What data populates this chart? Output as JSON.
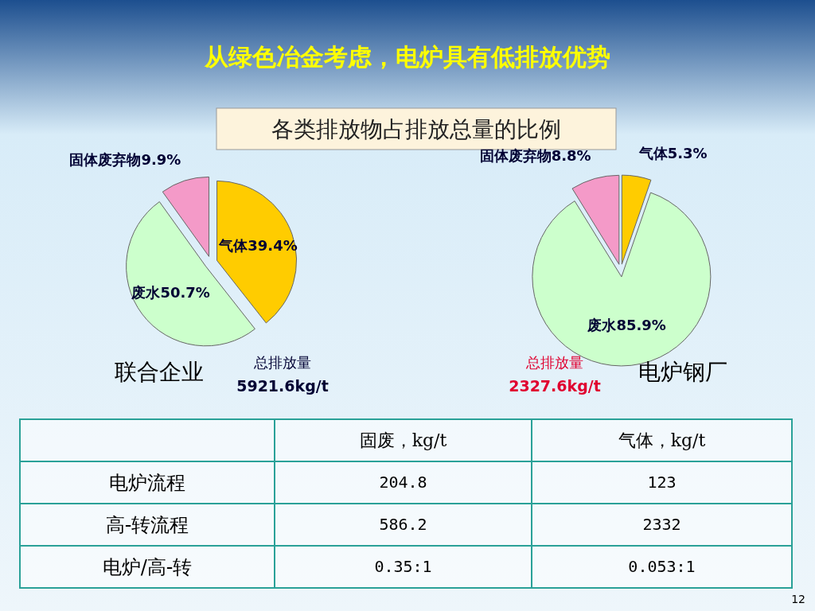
{
  "chart_data": [
    {
      "type": "pie",
      "title": "从绿色冶金考虑，电炉具有低排放优势",
      "subtitle": "各类排放物占排放总量的比例",
      "categories": [
        "气体",
        "废水",
        "固体废弃物"
      ],
      "values": [
        39.4,
        50.7,
        9.9
      ],
      "colors": [
        "#ffcc00",
        "#ccffcc",
        "#f49ac8"
      ],
      "value_labels": [
        "39.4%",
        "50.7%",
        "9.9%"
      ],
      "annotations": [
        "联合企业",
        "总排放量",
        "5921.6kg/t"
      ]
    },
    {
      "type": "pie",
      "categories": [
        "气体",
        "废水",
        "固体废弃物"
      ],
      "values": [
        5.3,
        85.9,
        8.8
      ],
      "colors": [
        "#ffcc00",
        "#ccffcc",
        "#f49ac8"
      ],
      "value_labels": [
        "5.3%",
        "85.9%",
        "8.8%"
      ],
      "annotations": [
        "电炉钢厂",
        "总排放量",
        "2327.6kg/t"
      ]
    },
    {
      "type": "other",
      "categories": [
        null,
        "固废，kg/t",
        "气体，kg/t"
      ],
      "y_categories": [
        "电炉流程",
        "高-转流程",
        "电炉/高-转"
      ],
      "cell_labels": [
        [
          "204.8",
          "123"
        ],
        [
          "586.2",
          "2332"
        ],
        [
          "0.35:1",
          "0.053:1"
        ]
      ],
      "annotations": [
        "12"
      ]
    }
  ]
}
